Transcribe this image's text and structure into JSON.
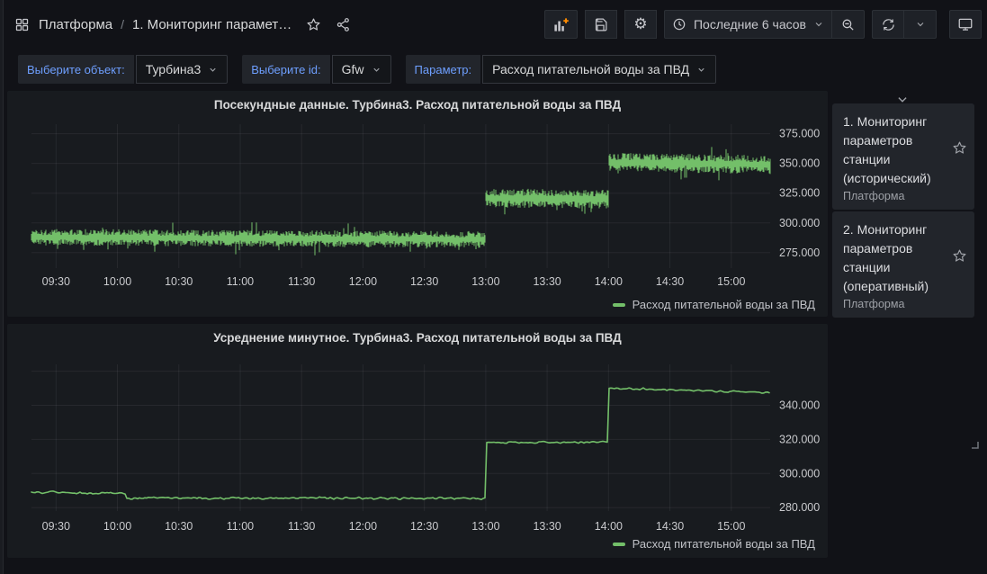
{
  "header": {
    "breadcrumb": {
      "root": "Платформа",
      "separator": "/",
      "current": "1. Мониторинг парамет…"
    },
    "toolbar": {
      "time_range_label": "Последние 6 часов"
    }
  },
  "icons": {
    "gear": "⚙"
  },
  "variables": [
    {
      "label": "Выберите объект:",
      "value": "Турбина3"
    },
    {
      "label": "Выберите id:",
      "value": "Gfw"
    },
    {
      "label": "Параметр:",
      "value": "Расход питательной воды за ПВД"
    }
  ],
  "sidebar": {
    "items": [
      {
        "title": "1. Мониторинг параметров станции (исторический)",
        "subtitle": "Платформа"
      },
      {
        "title": "2. Мониторинг параметров станции (оперативный)",
        "subtitle": "Платформа"
      }
    ]
  },
  "colors": {
    "series_green": "#73bf69",
    "label_blue": "#6e9fff",
    "add_plus_orange": "#ff8c00",
    "grid": "rgba(204,204,220,0.08)",
    "axis_text": "#c9cacd"
  },
  "chart_data": [
    {
      "type": "line",
      "render": "noisy-band",
      "title": "Посекундные данные. Турбина3. Расход питательной воды за ПВД",
      "x_range": [
        "09:18",
        "15:19"
      ],
      "x_tick_labels": [
        "09:30",
        "10:00",
        "10:30",
        "11:00",
        "11:30",
        "12:00",
        "12:30",
        "13:00",
        "13:30",
        "14:00",
        "14:30",
        "15:00"
      ],
      "ylim": [
        262,
        383
      ],
      "y_ticks": [
        {
          "value": 275,
          "label": "275.000"
        },
        {
          "value": 300,
          "label": "300.000"
        },
        {
          "value": 325,
          "label": "325.000"
        },
        {
          "value": 350,
          "label": "350.000"
        },
        {
          "value": 375,
          "label": "375.000"
        }
      ],
      "grid": true,
      "legend": {
        "position": "bottom",
        "entries": [
          {
            "label": "Расход питательной воды за ПВД",
            "color": "#73bf69"
          }
        ]
      },
      "series": [
        {
          "name": "Расход питательной воды за ПВД",
          "color": "#73bf69",
          "segments": [
            {
              "from": "09:18",
              "to": "13:00",
              "mean_start": 288,
              "mean_end": 286,
              "noise": 7
            },
            {
              "from": "13:00",
              "to": "14:00",
              "mean_start": 321,
              "mean_end": 320,
              "noise": 8
            },
            {
              "from": "14:00",
              "to": "15:19",
              "mean_start": 351,
              "mean_end": 349,
              "noise": 8
            }
          ]
        }
      ]
    },
    {
      "type": "line",
      "render": "line",
      "title": "Усреднение минутное. Турбина3. Расход питательной воды за ПВД",
      "x_range": [
        "09:18",
        "15:19"
      ],
      "x_tick_labels": [
        "09:30",
        "10:00",
        "10:30",
        "11:00",
        "11:30",
        "12:00",
        "12:30",
        "13:00",
        "13:30",
        "14:00",
        "14:30",
        "15:00"
      ],
      "ylim": [
        278,
        364
      ],
      "y_ticks": [
        {
          "value": 280,
          "label": "280.000"
        },
        {
          "value": 300,
          "label": "300.000"
        },
        {
          "value": 320,
          "label": "320.000"
        },
        {
          "value": 340,
          "label": "340.000"
        },
        {
          "value": 360,
          "label": ""
        }
      ],
      "grid": true,
      "legend": {
        "position": "bottom",
        "entries": [
          {
            "label": "Расход питательной воды за ПВД",
            "color": "#73bf69"
          }
        ]
      },
      "series": [
        {
          "name": "Расход питательной воды за ПВД",
          "color": "#73bf69",
          "segments": [
            {
              "from": "09:18",
              "to": "10:04",
              "mean_start": 289,
              "mean_end": 288.5,
              "noise": 1.3
            },
            {
              "from": "10:04",
              "to": "13:00",
              "mean_start": 285.5,
              "mean_end": 285.5,
              "noise": 1.3
            },
            {
              "from": "13:00",
              "to": "14:00",
              "mean_start": 318,
              "mean_end": 318.5,
              "noise": 1.1
            },
            {
              "from": "14:00",
              "to": "15:19",
              "mean_start": 350,
              "mean_end": 347.5,
              "noise": 1.1
            }
          ]
        }
      ]
    }
  ]
}
